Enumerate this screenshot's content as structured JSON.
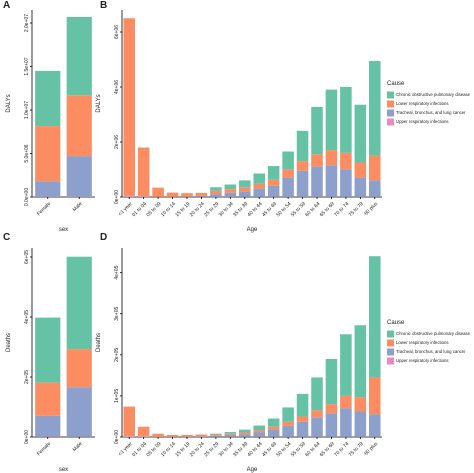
{
  "chart_data": [
    {
      "type": "bar",
      "stacked": true,
      "panel": "A",
      "y_label": "DALYs",
      "x_label": "sex",
      "categories": [
        "Female",
        "Male"
      ],
      "series": [
        {
          "color": "#66c2a5",
          "values": [
            6350000,
            9000000
          ]
        },
        {
          "color": "#fc8d62",
          "values": [
            6350000,
            7000000
          ]
        },
        {
          "color": "#8da0cb",
          "values": [
            1750000,
            4650000
          ]
        },
        {
          "color": "#e78ac3",
          "values": [
            50000,
            50000
          ]
        }
      ],
      "ylim": [
        0,
        21500000
      ],
      "yticks": [
        {
          "value": 0,
          "label": "0.0e+00"
        },
        {
          "value": 5000000,
          "label": "5.0e+06"
        },
        {
          "value": 10000000,
          "label": "1.0e+07"
        },
        {
          "value": 15000000,
          "label": "1.5e+07"
        },
        {
          "value": 20000000,
          "label": "2.0e+07"
        }
      ]
    },
    {
      "type": "bar",
      "stacked": true,
      "panel": "B",
      "y_label": "DALYs",
      "x_label": "Age",
      "legend_title": "Cause",
      "legend": "right",
      "categories": [
        "<1 year",
        "01 to 04",
        "05 to 09",
        "10 to 14",
        "15 to 19",
        "20 to 24",
        "25 to 29",
        "30 to 34",
        "35 to 39",
        "40 to 44",
        "45 to 49",
        "50 to 54",
        "55 to 59",
        "60 to 64",
        "65 to 69",
        "70 to 74",
        "75 to 79",
        "80 plus"
      ],
      "series": [
        {
          "name": "Chronic obstructive pulmonary disease",
          "color": "#66c2a5",
          "values": [
            0,
            0,
            0,
            0,
            0,
            0,
            130000,
            170000,
            250000,
            370000,
            500000,
            650000,
            1100000,
            1720000,
            2200000,
            2400000,
            2100000,
            3440000
          ]
        },
        {
          "name": "Lower respiratory infections",
          "color": "#fc8d62",
          "values": [
            6450000,
            1780000,
            330000,
            150000,
            120000,
            110000,
            120000,
            130000,
            150000,
            180000,
            220000,
            300000,
            350000,
            450000,
            550000,
            600000,
            550000,
            900000
          ]
        },
        {
          "name": "Tracheal, bronchus, and lung cancer",
          "color": "#8da0cb",
          "values": [
            0,
            0,
            0,
            0,
            10000,
            30000,
            100000,
            150000,
            200000,
            300000,
            400000,
            700000,
            950000,
            1100000,
            1150000,
            1000000,
            700000,
            600000
          ]
        },
        {
          "name": "Upper respiratory infections",
          "color": "#e78ac3",
          "values": [
            50000,
            20000,
            10000,
            10000,
            10000,
            10000,
            5000,
            5000,
            5000,
            5000,
            5000,
            5000,
            5000,
            5000,
            5000,
            5000,
            5000,
            5000
          ]
        }
      ],
      "ylim": [
        0,
        6800000
      ],
      "yticks": [
        {
          "value": 0,
          "label": "0e+00"
        },
        {
          "value": 2000000,
          "label": "2e+06"
        },
        {
          "value": 4000000,
          "label": "4e+06"
        },
        {
          "value": 6000000,
          "label": "6e+06"
        }
      ]
    },
    {
      "type": "bar",
      "stacked": true,
      "panel": "C",
      "y_label": "Deaths",
      "x_label": "sex",
      "categories": [
        "Female",
        "Male"
      ],
      "series": [
        {
          "color": "#66c2a5",
          "values": [
            217000,
            308000
          ]
        },
        {
          "color": "#fc8d62",
          "values": [
            110000,
            127000
          ]
        },
        {
          "color": "#8da0cb",
          "values": [
            70000,
            165000
          ]
        },
        {
          "color": "#e78ac3",
          "values": [
            1000,
            1000
          ]
        }
      ],
      "ylim": [
        0,
        630000
      ],
      "yticks": [
        {
          "value": 0,
          "label": "0e+00"
        },
        {
          "value": 200000,
          "label": "2e+05"
        },
        {
          "value": 400000,
          "label": "4e+05"
        },
        {
          "value": 600000,
          "label": "6e+05"
        }
      ]
    },
    {
      "type": "bar",
      "stacked": true,
      "panel": "D",
      "y_label": "Deaths",
      "x_label": "Age",
      "legend_title": "Cause",
      "legend": "right",
      "categories": [
        "<1 year",
        "01 to 04",
        "05 to 09",
        "10 to 14",
        "15 to 19",
        "20 to 24",
        "25 to 29",
        "30 to 34",
        "35 to 39",
        "40 to 44",
        "45 to 49",
        "50 to 54",
        "55 to 59",
        "60 to 64",
        "65 to 69",
        "70 to 74",
        "75 to 79",
        "80 plus"
      ],
      "series": [
        {
          "name": "Chronic obstructive pulmonary disease",
          "color": "#66c2a5",
          "values": [
            0,
            0,
            0,
            0,
            0,
            0,
            2000,
            4000,
            7000,
            12000,
            20000,
            35000,
            55000,
            80000,
            110000,
            150000,
            175000,
            295000
          ]
        },
        {
          "name": "Lower respiratory infections",
          "color": "#fc8d62",
          "values": [
            72000,
            23000,
            7000,
            4000,
            4000,
            4000,
            3000,
            3000,
            4000,
            5000,
            7000,
            10000,
            13000,
            17000,
            22000,
            30000,
            35000,
            90000
          ]
        },
        {
          "name": "Tracheal, bronchus, and lung cancer",
          "color": "#8da0cb",
          "values": [
            0,
            0,
            0,
            0,
            0,
            1000,
            2500,
            4500,
            6500,
            10500,
            17500,
            26500,
            36500,
            47500,
            57500,
            69500,
            61500,
            54500
          ]
        },
        {
          "name": "Upper respiratory infections",
          "color": "#e78ac3",
          "values": [
            2000,
            2000,
            1000,
            1000,
            1000,
            1000,
            500,
            500,
            500,
            500,
            500,
            500,
            500,
            500,
            500,
            500,
            500,
            500
          ]
        }
      ],
      "ylim": [
        0,
        460000
      ],
      "yticks": [
        {
          "value": 0,
          "label": "0e+00"
        },
        {
          "value": 100000,
          "label": "1e+05"
        },
        {
          "value": 200000,
          "label": "2e+05"
        },
        {
          "value": 300000,
          "label": "3e+05"
        },
        {
          "value": 400000,
          "label": "4e+05"
        }
      ]
    }
  ]
}
